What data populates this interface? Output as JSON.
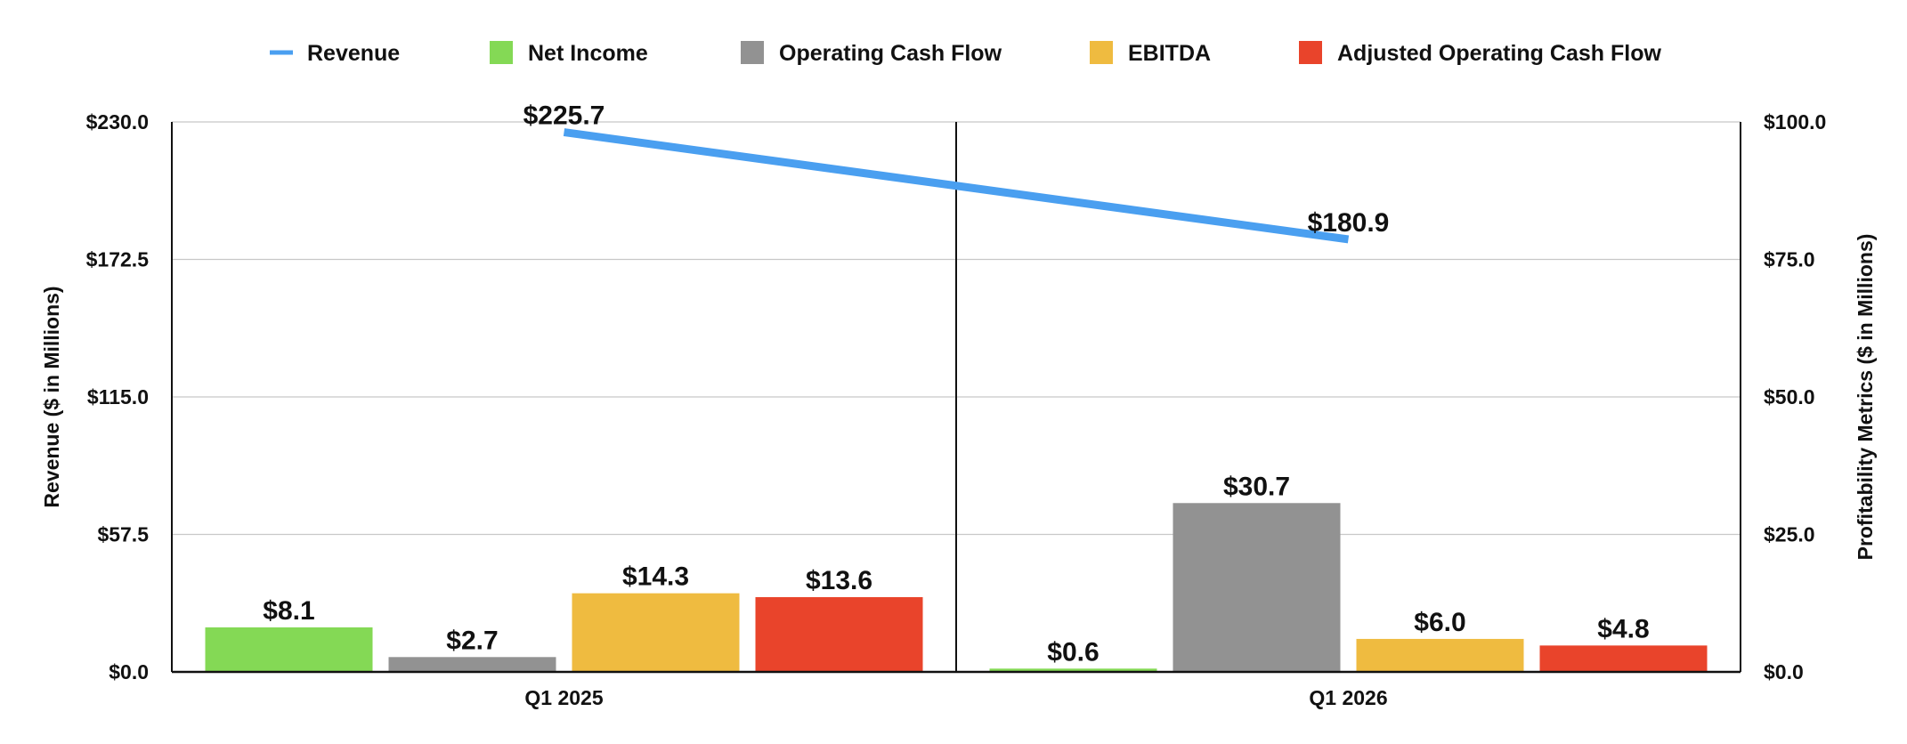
{
  "chart_data": {
    "type": "bar",
    "categories": [
      "Q1 2025",
      "Q1 2026"
    ],
    "line_series": {
      "name": "Revenue",
      "axis": "left",
      "values": [
        225.7,
        180.9
      ],
      "labels": [
        "$225.7",
        "$180.9"
      ],
      "color": "#4A9FF0"
    },
    "bar_series": [
      {
        "name": "Net Income",
        "axis": "right",
        "values": [
          8.1,
          0.6
        ],
        "labels": [
          "$8.1",
          "$0.6"
        ],
        "color": "#84D955"
      },
      {
        "name": "Operating Cash Flow",
        "axis": "right",
        "values": [
          2.7,
          30.7
        ],
        "labels": [
          "$2.7",
          "$30.7"
        ],
        "color": "#929292"
      },
      {
        "name": "EBITDA",
        "axis": "right",
        "values": [
          14.3,
          6.0
        ],
        "labels": [
          "$14.3",
          "$6.0"
        ],
        "color": "#EFBB40"
      },
      {
        "name": "Adjusted Operating Cash Flow",
        "axis": "right",
        "values": [
          13.6,
          4.8
        ],
        "labels": [
          "$13.6",
          "$4.8"
        ],
        "color": "#E9442B"
      }
    ],
    "left_axis": {
      "title": "Revenue ($ in Millions)",
      "ylim": [
        0,
        230
      ],
      "ticks": [
        0,
        57.5,
        115,
        172.5,
        230
      ],
      "tick_labels": [
        "$0.0",
        "$57.5",
        "$115.0",
        "$172.5",
        "$230.0"
      ]
    },
    "right_axis": {
      "title": "Profitability Metrics ($ in Millions)",
      "ylim": [
        0,
        100
      ],
      "ticks": [
        0,
        25,
        50,
        75,
        100
      ],
      "tick_labels": [
        "$0.0",
        "$25.0",
        "$50.0",
        "$75.0",
        "$100.0"
      ]
    },
    "grid": true,
    "legend_position": "top"
  }
}
